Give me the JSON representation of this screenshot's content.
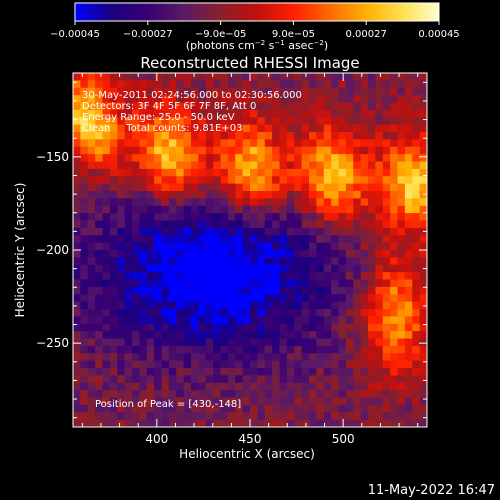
{
  "chart_data": {
    "type": "heatmap",
    "title": "Reconstructed RHESSI Image",
    "xlabel": "Heliocentric X (arcsec)",
    "ylabel": "Heliocentric Y (arcsec)",
    "xlim": [
      355,
      545
    ],
    "ylim": [
      -295,
      -105
    ],
    "x_ticks": [
      400,
      450,
      500
    ],
    "x_tick_labels": [
      "400",
      "450",
      "500"
    ],
    "y_ticks": [
      -150,
      -200,
      -250
    ],
    "y_tick_labels": [
      "−150",
      "−200",
      "−250"
    ],
    "colorbar": {
      "range": [
        -0.00045,
        0.00045
      ],
      "ticks": [
        -0.00045,
        -0.00027,
        -9e-05,
        9e-05,
        0.00027,
        0.00045
      ],
      "tick_labels": [
        "−0.00045",
        "−0.00027",
        "−9.0e−05",
        "9.0e−05",
        "0.00027",
        "0.00045"
      ],
      "units_prefix": "(photons cm",
      "units_exp1": "−2",
      "units_mid": " s",
      "units_exp2": "−1",
      "units_mid2": " asec",
      "units_exp3": "−2",
      "units_suffix": ")",
      "colormap": [
        "#0000ff",
        "#1a0080",
        "#3a0072",
        "#5a1a66",
        "#8a1f2a",
        "#c01010",
        "#ff2000",
        "#ff6a00",
        "#ffb000",
        "#ffe050",
        "#ffffd0"
      ]
    },
    "annotations": [
      "30-May-2011 02:24:56.000 to 02:30:56.000",
      "Detectors: 3F 4F 5F 6F 7F 8F, Att 0",
      "Energy Range: 25.0 - 50.0 keV",
      "Clean     Total counts: 9.81E+03"
    ],
    "peak_label": "Position of Peak = [430,-148]",
    "peak": [
      430,
      -148
    ],
    "grid_cols": 48,
    "grid_rows": 48,
    "regions": [
      {
        "name": "upper-band",
        "ridge": [
          [
            355,
            -128
          ],
          [
            400,
            -150
          ],
          [
            450,
            -158
          ],
          [
            500,
            -163
          ],
          [
            545,
            -168
          ]
        ],
        "peak_value": 0.00045
      },
      {
        "name": "right-source",
        "center": [
          528,
          -235
        ],
        "sigma": [
          12,
          22
        ],
        "peak_value": 0.00038
      },
      {
        "name": "negative-lobe",
        "center": [
          430,
          -212
        ],
        "sigma": [
          45,
          30
        ],
        "peak_value": -0.0004
      }
    ]
  },
  "footer": {
    "timestamp": "11-May-2022 16:47"
  }
}
